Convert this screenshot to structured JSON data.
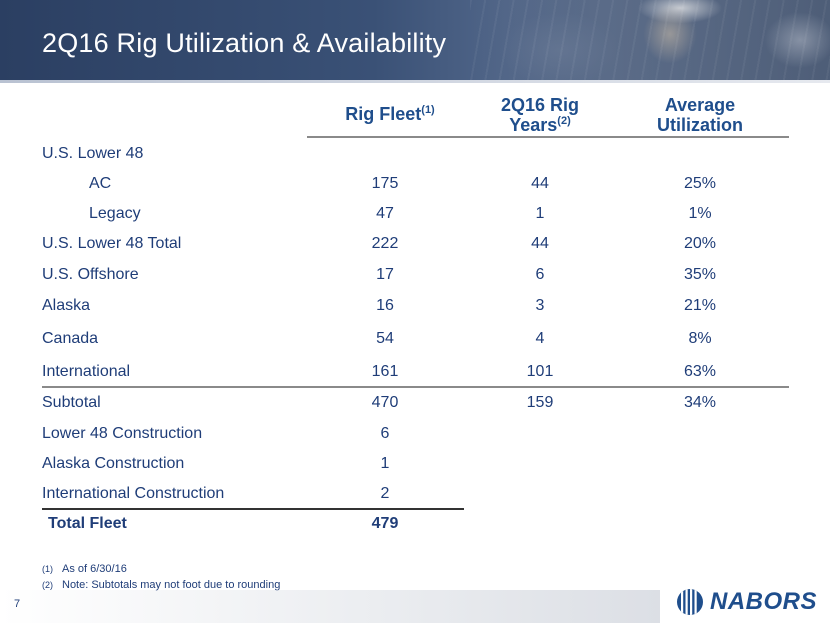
{
  "header": {
    "title": "2Q16 Rig Utilization & Availability"
  },
  "columns": {
    "fleet": {
      "label": "Rig Fleet",
      "footnote": "(1)"
    },
    "years": {
      "label_line1": "2Q16 Rig",
      "label_line2": "Years",
      "footnote": "(2)"
    },
    "util": {
      "label_line1": "Average",
      "label_line2": "Utilization"
    }
  },
  "rows": [
    {
      "label": "U.S. Lower 48",
      "fleet": "",
      "years": "",
      "util": ""
    },
    {
      "label": "AC",
      "fleet": "175",
      "years": "44",
      "util": "25%"
    },
    {
      "label": "Legacy",
      "fleet": "47",
      "years": "1",
      "util": "1%"
    },
    {
      "label": "U.S. Lower 48 Total",
      "fleet": "222",
      "years": "44",
      "util": "20%"
    },
    {
      "label": "U.S. Offshore",
      "fleet": "17",
      "years": "6",
      "util": "35%"
    },
    {
      "label": "Alaska",
      "fleet": "16",
      "years": "3",
      "util": "21%"
    },
    {
      "label": "Canada",
      "fleet": "54",
      "years": "4",
      "util": "8%"
    },
    {
      "label": "International",
      "fleet": "161",
      "years": "101",
      "util": "63%"
    },
    {
      "label": "Subtotal",
      "fleet": "470",
      "years": "159",
      "util": "34%"
    },
    {
      "label": "Lower 48 Construction",
      "fleet": "6",
      "years": "",
      "util": ""
    },
    {
      "label": "Alaska Construction",
      "fleet": "1",
      "years": "",
      "util": ""
    },
    {
      "label": "International Construction",
      "fleet": "2",
      "years": "",
      "util": ""
    },
    {
      "label": "Total Fleet",
      "fleet": "479",
      "years": "",
      "util": ""
    }
  ],
  "footnotes": [
    {
      "mark": "(1)",
      "text": "As of 6/30/16"
    },
    {
      "mark": "(2)",
      "text": "Note:  Subtotals may not foot due to rounding"
    }
  ],
  "footer": {
    "page_number": "7",
    "logo_text": "NABORS",
    "logo_icon": "nabors-logo-icon"
  },
  "colors": {
    "banner": "#2b3f62",
    "text": "#1f3d78",
    "header_text": "#1f4e8c"
  }
}
